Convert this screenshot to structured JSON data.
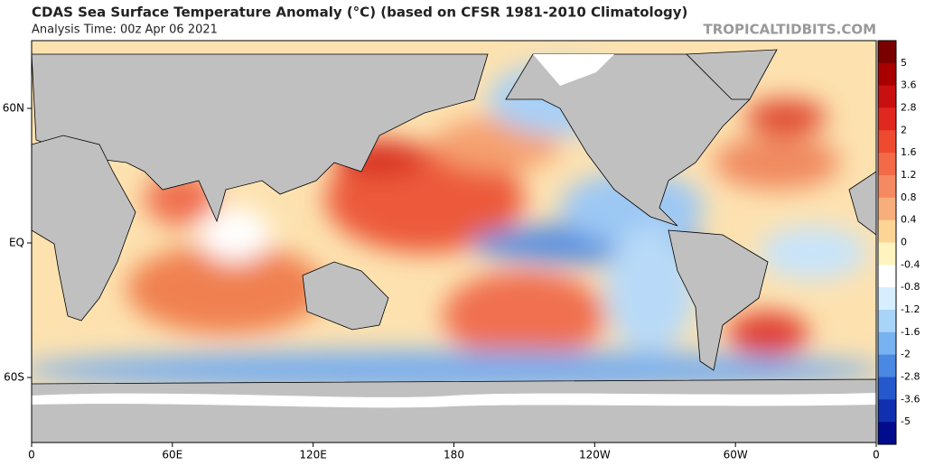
{
  "header": {
    "title": "CDAS Sea Surface Temperature Anomaly (°C) (based on CFSR 1981-2010 Climatology)",
    "subtitle": "Analysis Time: 00z Apr 06 2021",
    "watermark": "TROPICALTIDBITS.COM"
  },
  "map": {
    "lat_labels": [
      "60N",
      "EQ",
      "60S"
    ],
    "lon_labels": [
      "0",
      "60E",
      "120E",
      "180",
      "120W",
      "60W",
      "0"
    ]
  },
  "colorbar": {
    "labels": [
      "5",
      "3.6",
      "2.8",
      "2",
      "1.6",
      "1.2",
      "0.8",
      "0.4",
      "0",
      "-0.4",
      "-0.8",
      "-1.2",
      "-1.6",
      "-2",
      "-2.8",
      "-3.6",
      "-5"
    ],
    "colors": [
      "#7a0000",
      "#a80000",
      "#c81010",
      "#e02820",
      "#ee4a30",
      "#f26a48",
      "#f58a62",
      "#f8ae7c",
      "#fcd496",
      "#fff4c0",
      "#ffffff",
      "#d6eeff",
      "#a8d4f8",
      "#78b2f0",
      "#4a88e2",
      "#2458cc",
      "#1030b0",
      "#000c8c"
    ]
  }
}
